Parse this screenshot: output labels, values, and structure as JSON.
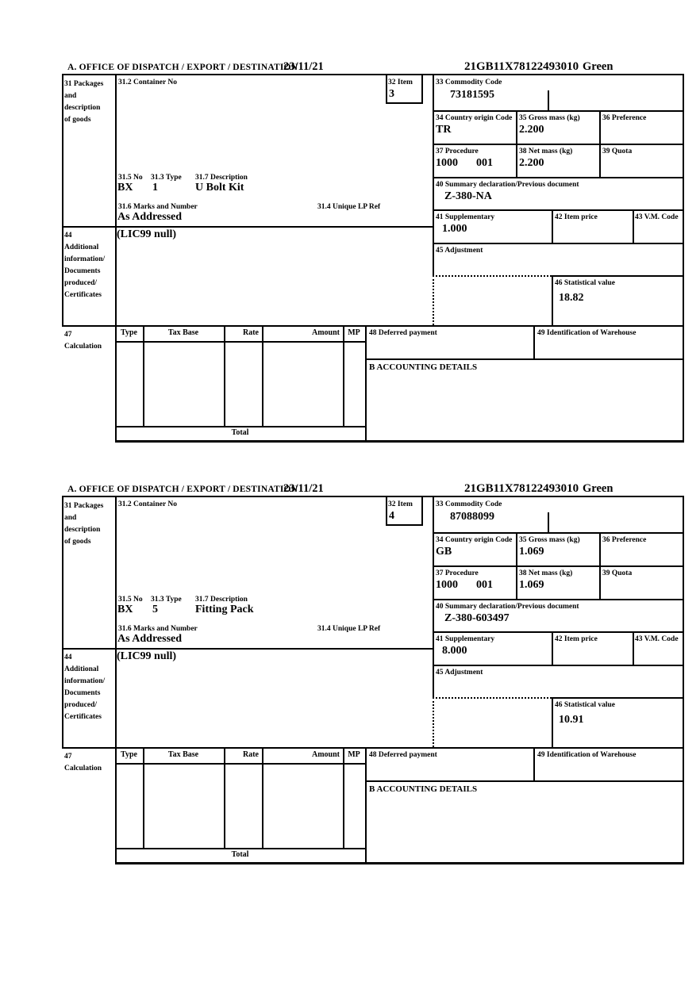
{
  "labels": {
    "office": "A.  OFFICE OF DISPATCH / EXPORT / DESTINATION",
    "box31": "31 Packages\nand\ndescription\nof goods",
    "box31_2": "31.2 Container No",
    "box31_5": "31.5 No",
    "box31_3": "31.3 Type",
    "box31_7": "31.7 Description",
    "box31_6": "31.6 Marks and Number",
    "box31_4": "31.4 Unique LP Ref",
    "box32": "32 Item",
    "box33": "33 Commodity Code",
    "box34": "34 Country origin Code",
    "box35": "35 Gross mass (kg)",
    "box36": "36 Preference",
    "box37": "37 Procedure",
    "box38": "38 Net mass (kg)",
    "box39": "39 Quota",
    "box40": "40 Summary declaration/Previous document",
    "box41": "41 Supplementary",
    "box42": "42 Item price",
    "box43": "43 V.M. Code",
    "box44": "44\nAdditional\ninformation/\nDocuments\nproduced/\nCertificates",
    "box45": "45 Adjustment",
    "box46": "46 Statistical value",
    "box47": "47\nCalculation",
    "box48": "48 Deferred payment",
    "box49": "49 Identification of Warehouse",
    "accounting": "B ACCOUNTING DETAILS",
    "table_headers": {
      "type": "Type",
      "tax_base": "Tax Base",
      "rate": "Rate",
      "amount": "Amount",
      "mp": "MP"
    },
    "total": "Total"
  },
  "sections": [
    {
      "date": "23/11/21",
      "mrn": "21GB11X78122493010",
      "routing": "Green",
      "item_no": "3",
      "commodity_code": "73181595",
      "country_origin_code": "TR",
      "gross_mass_kg": "2.200",
      "procedure": "1000",
      "procedure_extra": "001",
      "net_mass_kg": "2.200",
      "previous_document": "Z-380-NA",
      "supplementary": "1.000",
      "statistical_value": "18.82",
      "packages_no": "BX",
      "packages_type": "1",
      "description": "U Bolt Kit",
      "marks_and_number": "As Addressed",
      "additional_information": "(LIC99 null)"
    },
    {
      "date": "23/11/21",
      "mrn": "21GB11X78122493010",
      "routing": "Green",
      "item_no": "4",
      "commodity_code": "87088099",
      "country_origin_code": "GB",
      "gross_mass_kg": "1.069",
      "procedure": "1000",
      "procedure_extra": "001",
      "net_mass_kg": "1.069",
      "previous_document": "Z-380-603497",
      "supplementary": "8.000",
      "statistical_value": "10.91",
      "packages_no": "BX",
      "packages_type": "5",
      "description": "Fitting Pack",
      "marks_and_number": "As Addressed",
      "additional_information": "(LIC99 null)"
    }
  ]
}
